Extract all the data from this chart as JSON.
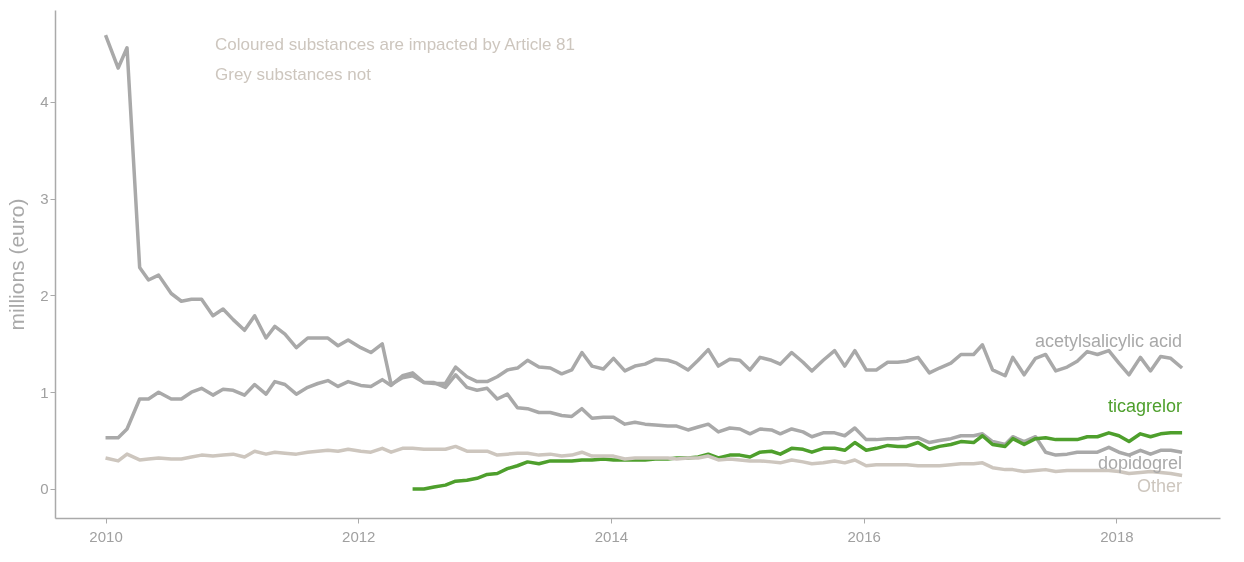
{
  "chart_data": {
    "type": "line",
    "ylabel": "millions (euro)",
    "annotations": [
      "Coloured substances are impacted by Article 81",
      "Grey substances not"
    ],
    "x": [
      2010.0,
      2010.1,
      2010.17,
      2010.27,
      2010.34,
      2010.42,
      2010.52,
      2010.6,
      2010.68,
      2010.76,
      2010.85,
      2010.93,
      2011.01,
      2011.1,
      2011.18,
      2011.27,
      2011.34,
      2011.42,
      2011.51,
      2011.6,
      2011.68,
      2011.76,
      2011.84,
      2011.92,
      2012.02,
      2012.1,
      2012.19,
      2012.26,
      2012.35,
      2012.43,
      2012.52,
      2012.6,
      2012.69,
      2012.77,
      2012.86,
      2012.94,
      2013.02,
      2013.1,
      2013.18,
      2013.26,
      2013.34,
      2013.43,
      2013.52,
      2013.61,
      2013.69,
      2013.77,
      2013.85,
      2013.94,
      2014.02,
      2014.11,
      2014.19,
      2014.27,
      2014.35,
      2014.45,
      2014.52,
      2014.61,
      2014.69,
      2014.77,
      2014.85,
      2014.94,
      2015.02,
      2015.1,
      2015.18,
      2015.27,
      2015.34,
      2015.43,
      2015.52,
      2015.59,
      2015.68,
      2015.77,
      2015.85,
      2015.93,
      2016.02,
      2016.1,
      2016.19,
      2016.27,
      2016.34,
      2016.43,
      2016.52,
      2016.6,
      2016.69,
      2016.77,
      2016.87,
      2016.94,
      2017.02,
      2017.12,
      2017.18,
      2017.27,
      2017.36,
      2017.44,
      2017.52,
      2017.61,
      2017.69,
      2017.77,
      2017.85,
      2017.94,
      2018.02,
      2018.1,
      2018.19,
      2018.27,
      2018.35,
      2018.43,
      2018.52
    ],
    "series": [
      {
        "name": "acetylsalicylic acid",
        "color": "#a9a9a9",
        "values": [
          0.53,
          0.53,
          0.62,
          0.93,
          0.93,
          1.0,
          0.93,
          0.93,
          1.0,
          1.04,
          0.97,
          1.03,
          1.02,
          0.97,
          1.08,
          0.98,
          1.11,
          1.08,
          0.98,
          1.05,
          1.09,
          1.12,
          1.06,
          1.11,
          1.07,
          1.06,
          1.13,
          1.07,
          1.17,
          1.2,
          1.1,
          1.09,
          1.09,
          1.26,
          1.16,
          1.11,
          1.11,
          1.16,
          1.23,
          1.25,
          1.33,
          1.26,
          1.25,
          1.19,
          1.23,
          1.41,
          1.27,
          1.24,
          1.35,
          1.22,
          1.27,
          1.29,
          1.34,
          1.33,
          1.3,
          1.23,
          1.33,
          1.44,
          1.27,
          1.34,
          1.33,
          1.23,
          1.36,
          1.33,
          1.29,
          1.41,
          1.31,
          1.22,
          1.33,
          1.43,
          1.27,
          1.43,
          1.23,
          1.23,
          1.31,
          1.31,
          1.32,
          1.36,
          1.2,
          1.25,
          1.3,
          1.39,
          1.39,
          1.49,
          1.23,
          1.17,
          1.36,
          1.18,
          1.35,
          1.39,
          1.22,
          1.26,
          1.32,
          1.42,
          1.39,
          1.43,
          1.3,
          1.18,
          1.36,
          1.22,
          1.37,
          1.35,
          1.25
        ]
      },
      {
        "name": "dopidogrel",
        "color": "#a9a9a9",
        "values": [
          4.69,
          4.35,
          4.56,
          2.29,
          2.16,
          2.21,
          2.02,
          1.94,
          1.96,
          1.96,
          1.79,
          1.86,
          1.75,
          1.64,
          1.79,
          1.56,
          1.68,
          1.6,
          1.46,
          1.56,
          1.56,
          1.56,
          1.48,
          1.54,
          1.46,
          1.41,
          1.5,
          1.08,
          1.15,
          1.17,
          1.1,
          1.1,
          1.05,
          1.18,
          1.05,
          1.02,
          1.04,
          0.93,
          0.98,
          0.84,
          0.83,
          0.79,
          0.79,
          0.76,
          0.75,
          0.83,
          0.73,
          0.74,
          0.74,
          0.67,
          0.69,
          0.67,
          0.66,
          0.65,
          0.65,
          0.61,
          0.64,
          0.67,
          0.59,
          0.63,
          0.62,
          0.57,
          0.62,
          0.61,
          0.57,
          0.62,
          0.59,
          0.54,
          0.58,
          0.58,
          0.55,
          0.63,
          0.51,
          0.51,
          0.52,
          0.52,
          0.53,
          0.53,
          0.48,
          0.5,
          0.52,
          0.55,
          0.55,
          0.57,
          0.49,
          0.46,
          0.54,
          0.49,
          0.54,
          0.38,
          0.35,
          0.36,
          0.38,
          0.38,
          0.38,
          0.43,
          0.38,
          0.35,
          0.4,
          0.36,
          0.4,
          0.4,
          0.38
        ]
      },
      {
        "name": "ticagrelor",
        "color": "#4e9f2c",
        "values": [
          null,
          null,
          null,
          null,
          null,
          null,
          null,
          null,
          null,
          null,
          null,
          null,
          null,
          null,
          null,
          null,
          null,
          null,
          null,
          null,
          null,
          null,
          null,
          null,
          null,
          null,
          null,
          null,
          null,
          0.0,
          0.0,
          0.02,
          0.04,
          0.08,
          0.09,
          0.11,
          0.15,
          0.16,
          0.21,
          0.24,
          0.28,
          0.26,
          0.29,
          0.29,
          0.29,
          0.3,
          0.3,
          0.31,
          0.3,
          0.3,
          0.3,
          0.3,
          0.31,
          0.31,
          0.32,
          0.32,
          0.33,
          0.36,
          0.32,
          0.35,
          0.35,
          0.33,
          0.38,
          0.39,
          0.36,
          0.42,
          0.41,
          0.38,
          0.42,
          0.42,
          0.4,
          0.48,
          0.4,
          0.42,
          0.45,
          0.44,
          0.44,
          0.48,
          0.41,
          0.44,
          0.46,
          0.49,
          0.48,
          0.55,
          0.46,
          0.44,
          0.52,
          0.46,
          0.52,
          0.53,
          0.51,
          0.51,
          0.51,
          0.54,
          0.54,
          0.58,
          0.55,
          0.49,
          0.57,
          0.54,
          0.57,
          0.58,
          0.58
        ]
      },
      {
        "name": "Other",
        "color": "#cdc6be",
        "values": [
          0.32,
          0.29,
          0.36,
          0.3,
          0.31,
          0.32,
          0.31,
          0.31,
          0.33,
          0.35,
          0.34,
          0.35,
          0.36,
          0.33,
          0.39,
          0.36,
          0.38,
          0.37,
          0.36,
          0.38,
          0.39,
          0.4,
          0.39,
          0.41,
          0.39,
          0.38,
          0.42,
          0.38,
          0.42,
          0.42,
          0.41,
          0.41,
          0.41,
          0.44,
          0.39,
          0.39,
          0.39,
          0.35,
          0.36,
          0.37,
          0.37,
          0.35,
          0.36,
          0.34,
          0.35,
          0.38,
          0.34,
          0.34,
          0.34,
          0.31,
          0.32,
          0.32,
          0.32,
          0.32,
          0.31,
          0.32,
          0.32,
          0.34,
          0.3,
          0.31,
          0.3,
          0.29,
          0.29,
          0.28,
          0.27,
          0.3,
          0.28,
          0.26,
          0.27,
          0.29,
          0.27,
          0.3,
          0.24,
          0.25,
          0.25,
          0.25,
          0.25,
          0.24,
          0.24,
          0.24,
          0.25,
          0.26,
          0.26,
          0.27,
          0.22,
          0.2,
          0.2,
          0.18,
          0.19,
          0.2,
          0.18,
          0.19,
          0.19,
          0.19,
          0.19,
          0.19,
          0.18,
          0.16,
          0.17,
          0.18,
          0.17,
          0.16,
          0.14
        ]
      }
    ],
    "xlim": [
      2009.6,
      2018.82
    ],
    "xticks": [
      2010,
      2012,
      2014,
      2016,
      2018
    ],
    "ylim": [
      -0.3,
      4.95
    ],
    "yticks": [
      0,
      1,
      2,
      3,
      4
    ],
    "grid": false,
    "legend": false
  }
}
